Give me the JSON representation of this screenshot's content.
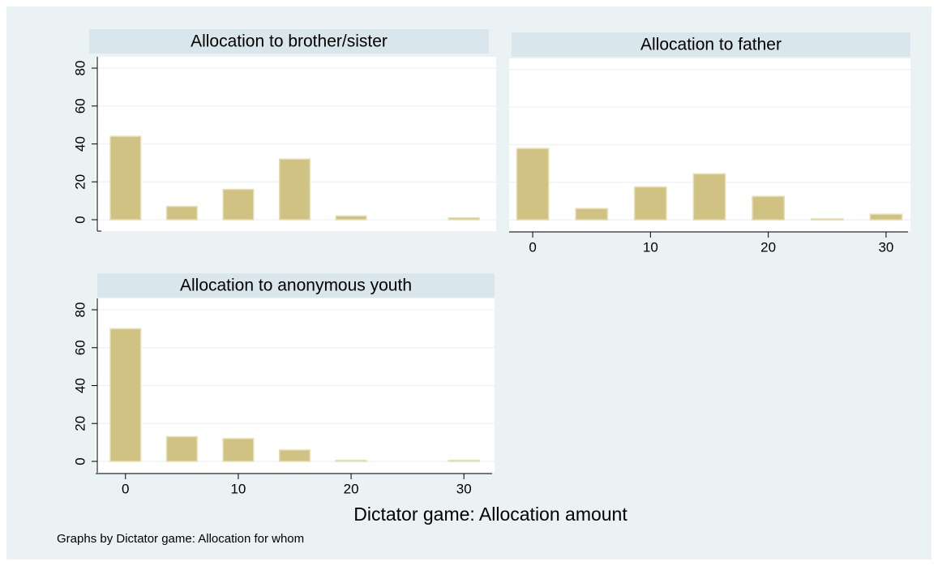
{
  "chart_data": [
    {
      "type": "bar",
      "title": "Allocation to brother/sister",
      "color": "#cfc283",
      "x": [
        0,
        5,
        10,
        15,
        20,
        25,
        30
      ],
      "values": [
        44,
        7,
        16,
        32,
        2,
        0,
        1
      ],
      "xlim": [
        -2.5,
        32.5
      ],
      "ylim": [
        -6,
        86
      ],
      "yticks": [
        0,
        20,
        40,
        60,
        80
      ],
      "ytick_labels": true,
      "grid": true
    },
    {
      "type": "bar",
      "title": "Allocation to father",
      "color": "#cfc283",
      "x": [
        0,
        5,
        10,
        15,
        20,
        25,
        30
      ],
      "values": [
        38,
        6,
        17.5,
        24.5,
        12.5,
        0.5,
        3
      ],
      "xlim": [
        -2,
        32
      ],
      "ylim": [
        -6,
        86
      ],
      "xticks": [
        0,
        10,
        20,
        30
      ],
      "yticks": [
        0,
        20,
        40,
        60,
        80
      ],
      "ytick_labels": false,
      "grid": true
    },
    {
      "type": "bar",
      "title": "Allocation to anonymous youth",
      "color": "#cfc283",
      "x": [
        0,
        5,
        10,
        15,
        20,
        25,
        30
      ],
      "values": [
        70,
        13,
        12,
        6,
        0.5,
        0,
        0.5
      ],
      "xlim": [
        -2.5,
        32.5
      ],
      "ylim": [
        -6,
        86
      ],
      "xticks": [
        0,
        10,
        20,
        30
      ],
      "yticks": [
        0,
        20,
        40,
        60,
        80
      ],
      "ytick_labels": true,
      "grid": true
    }
  ],
  "axis_title": "Dictator game: Allocation amount",
  "note": "Graphs by Dictator game: Allocation for whom"
}
